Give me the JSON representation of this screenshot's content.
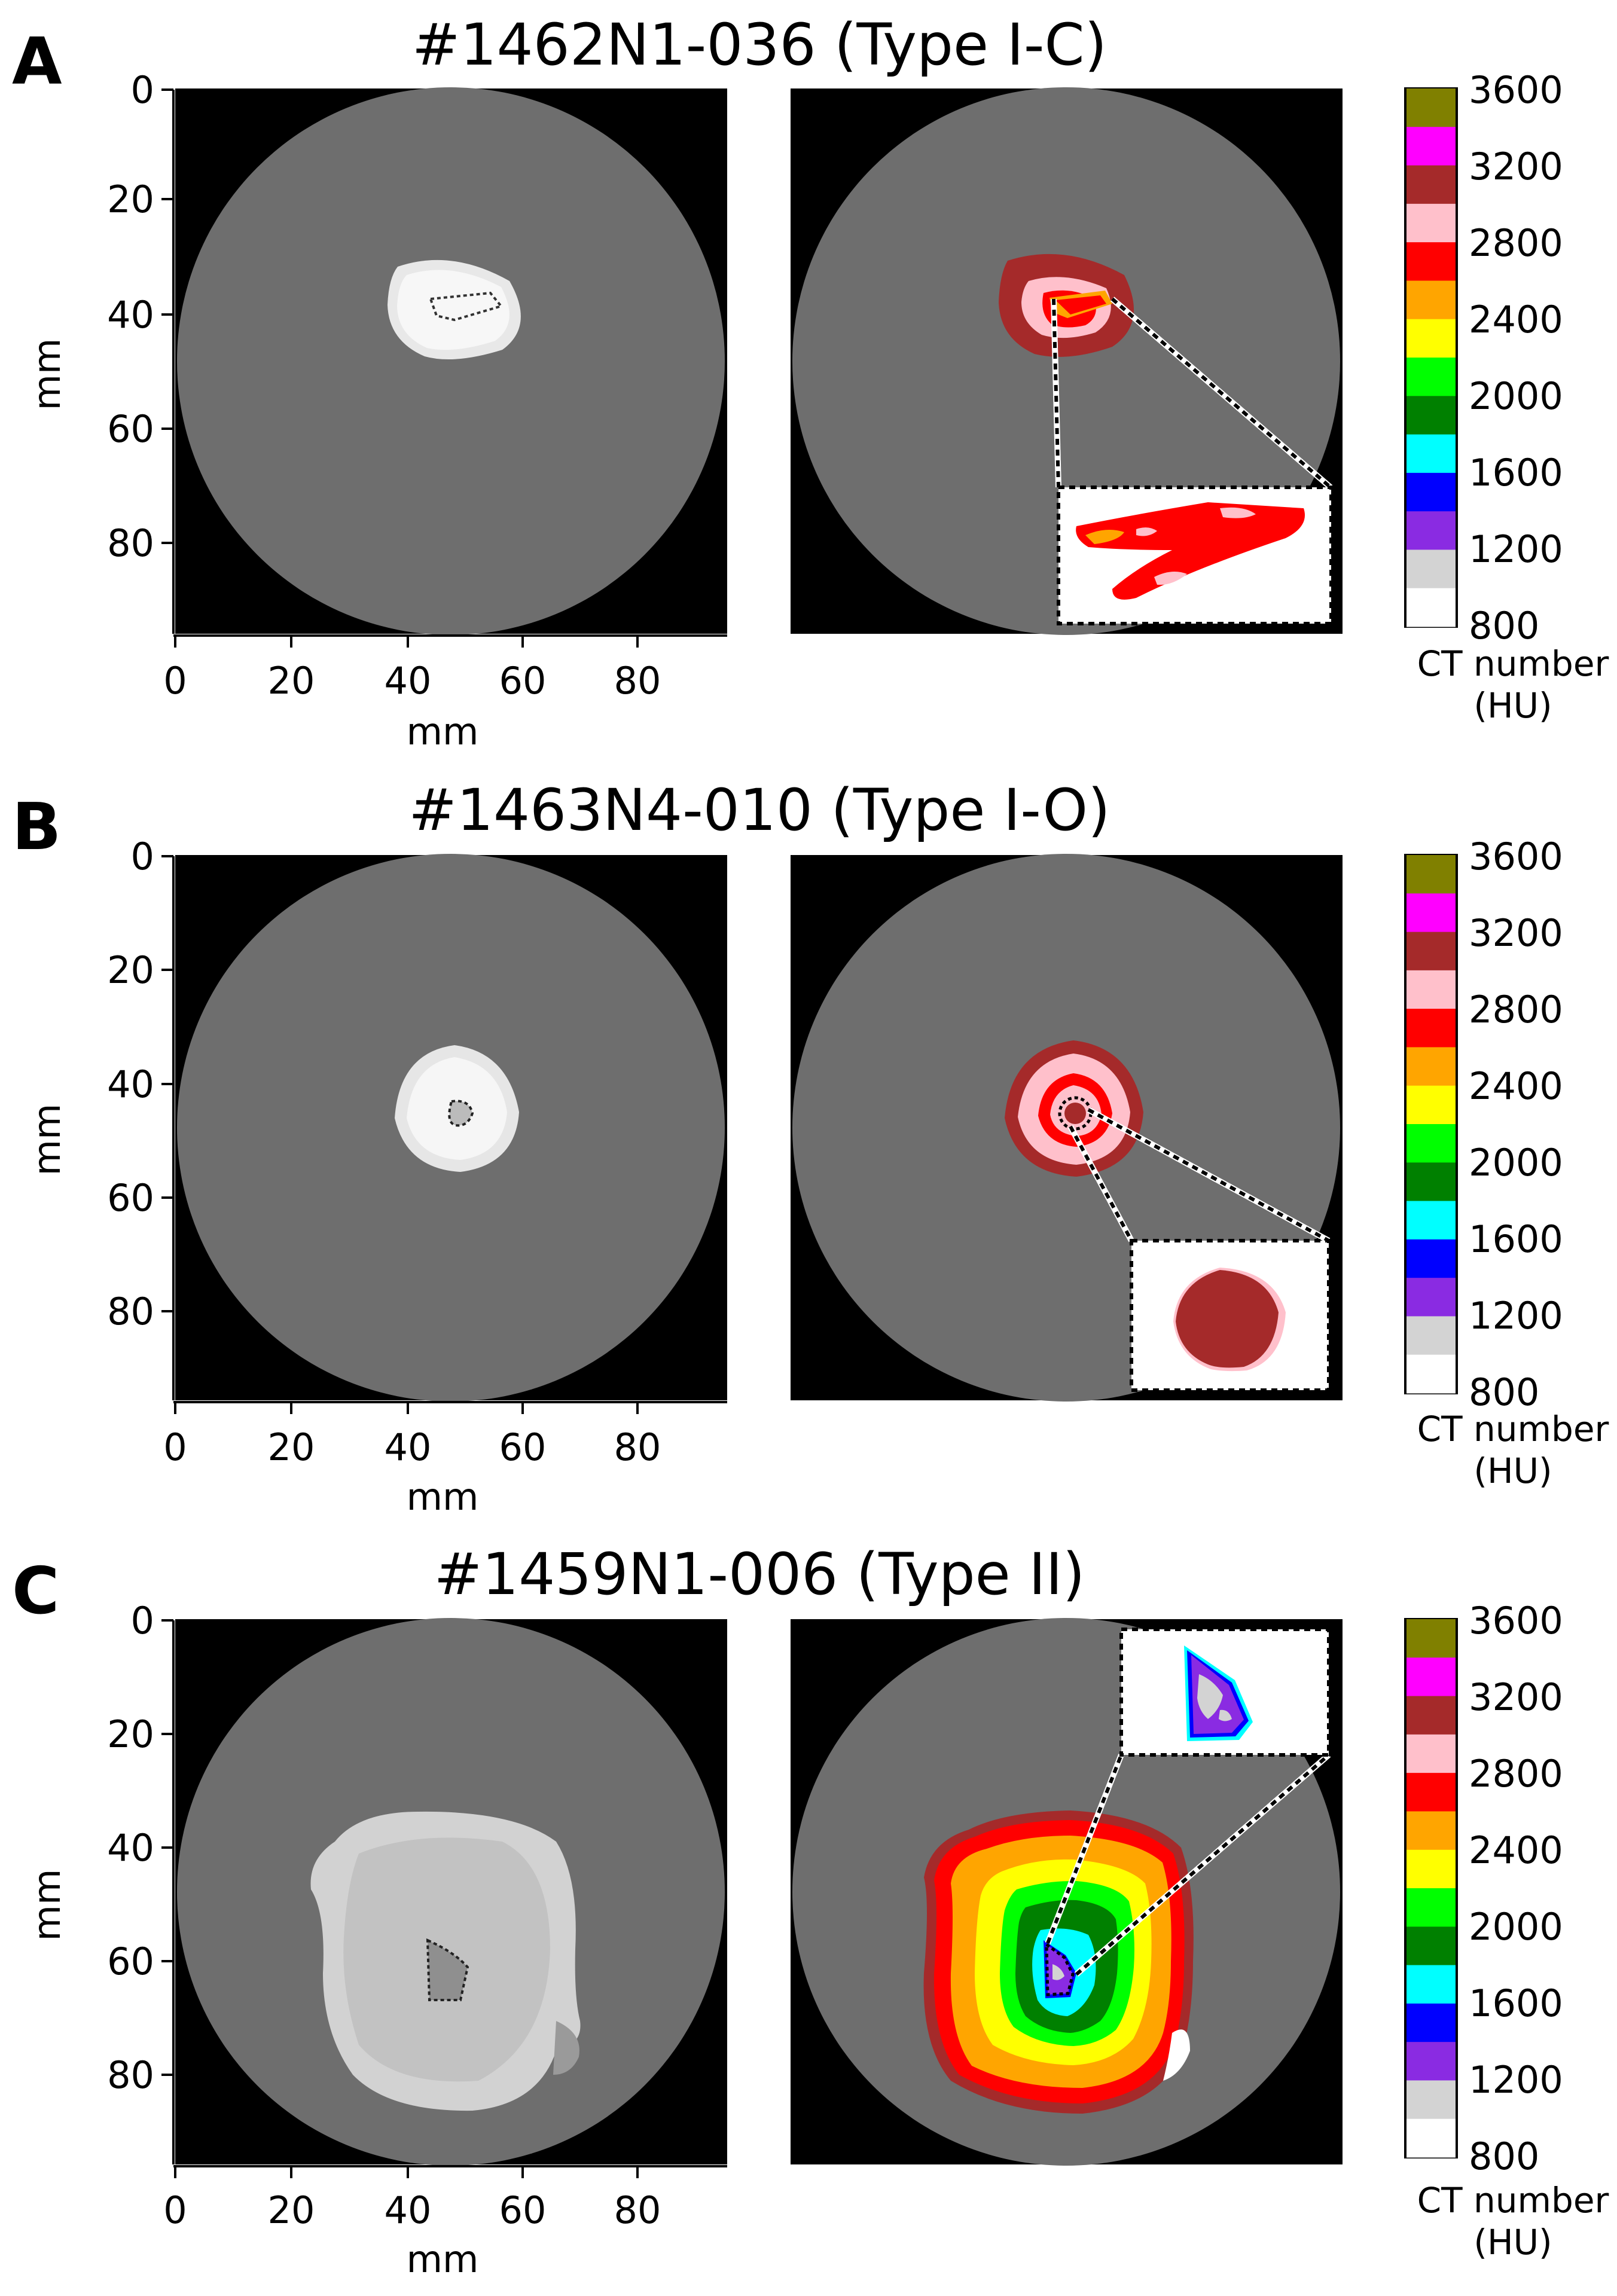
{
  "figure": {
    "colorbar": {
      "title_line1": "CT number",
      "title_line2": "(HU)",
      "ticks": [
        "3600",
        "3200",
        "2800",
        "2400",
        "2000",
        "1600",
        "1200",
        "800"
      ],
      "bands": [
        "#808000",
        "#ff00ff",
        "#a52a2a",
        "#ffc0cb",
        "#ff0000",
        "#ffa500",
        "#ffff00",
        "#00ff00",
        "#008000",
        "#00ffff",
        "#0000ff",
        "#8a2be2",
        "#d3d3d3",
        "#ffffff"
      ]
    },
    "axes": {
      "unit_label": "mm",
      "y_ticks": [
        "0",
        "20",
        "40",
        "60",
        "80"
      ],
      "x_ticks": [
        "0",
        "20",
        "40",
        "60",
        "80"
      ]
    },
    "panels": [
      {
        "letter": "A",
        "title": "#1462N1-036 (Type I-C)"
      },
      {
        "letter": "B",
        "title": "#1463N4-010 (Type I-O)"
      },
      {
        "letter": "C",
        "title": "#1459N1-006 (Type II)"
      }
    ],
    "colors": {
      "ct_background": "#000000",
      "ct_disk": "#6e6e6e",
      "brown": "#a52a2a",
      "pink": "#ffc0cb",
      "red": "#ff0000",
      "orange": "#ffa500",
      "yellow": "#ffff00",
      "green": "#00ff00",
      "dark_green": "#008000",
      "cyan": "#00ffff",
      "blue": "#0000ff",
      "violet": "#8a2be2",
      "light_gray": "#d3d3d3"
    }
  }
}
